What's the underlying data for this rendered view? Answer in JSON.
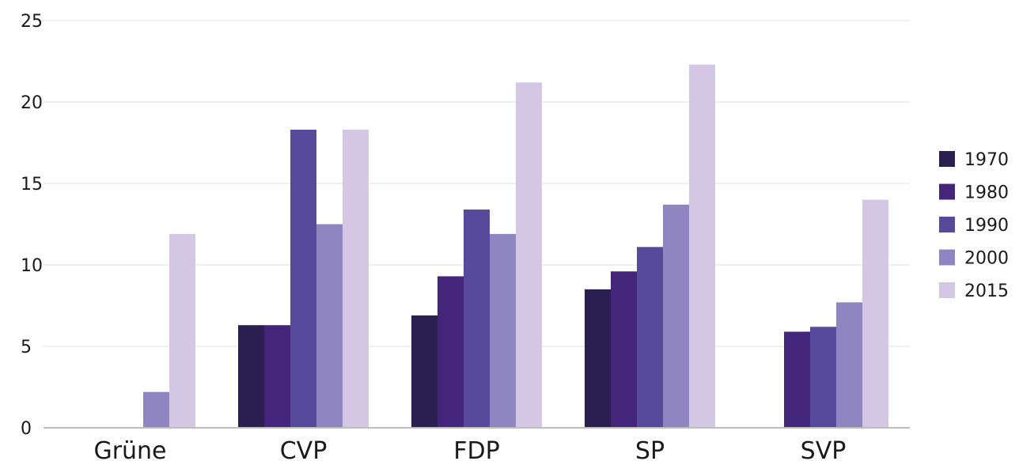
{
  "chart_data": {
    "type": "bar",
    "categories": [
      "Grüne",
      "CVP",
      "FDP",
      "SP",
      "SVP"
    ],
    "series": [
      {
        "name": "1970",
        "color": "#2a2050",
        "values": [
          null,
          6.3,
          6.9,
          8.5,
          null
        ]
      },
      {
        "name": "1980",
        "color": "#43267a",
        "values": [
          null,
          6.3,
          9.3,
          9.6,
          5.9
        ]
      },
      {
        "name": "1990",
        "color": "#574a9a",
        "values": [
          null,
          18.3,
          13.4,
          11.1,
          6.2
        ]
      },
      {
        "name": "2000",
        "color": "#8f85c0",
        "values": [
          2.2,
          12.5,
          11.9,
          13.7,
          7.7
        ]
      },
      {
        "name": "2015",
        "color": "#d4c7e4",
        "values": [
          11.9,
          18.3,
          21.2,
          22.3,
          14.0
        ]
      }
    ],
    "ylim": [
      0,
      25
    ],
    "yticks": [
      0,
      5,
      10,
      15,
      20,
      25
    ],
    "grid": true,
    "legend": "right"
  }
}
